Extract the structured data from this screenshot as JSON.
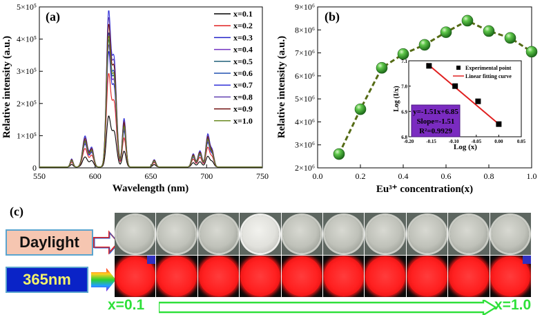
{
  "chart_data": [
    {
      "panel": "(a)",
      "type": "line",
      "xlabel": "Wavelength (nm)",
      "ylabel": "Relative intensity (a.u.)",
      "xlim": [
        550,
        750
      ],
      "ylim": [
        0,
        500000
      ],
      "x_ticks": [
        "550",
        "600",
        "650",
        "700",
        "750"
      ],
      "y_ticks": [
        "0",
        "1×10⁵",
        "2×10⁵",
        "3×10⁵",
        "4×10⁵",
        "5×10⁵"
      ],
      "peaks": [
        {
          "center": 579,
          "width": 1.3,
          "rel": 0.055
        },
        {
          "center": 591,
          "width": 2.2,
          "rel": 0.21
        },
        {
          "center": 597,
          "width": 1.8,
          "rel": 0.13
        },
        {
          "center": 612,
          "width": 1.9,
          "rel": 1.0
        },
        {
          "center": 617,
          "width": 2.2,
          "rel": 0.72
        },
        {
          "center": 626,
          "width": 1.6,
          "rel": 0.33
        },
        {
          "center": 653,
          "width": 1.5,
          "rel": 0.05
        },
        {
          "center": 688,
          "width": 1.6,
          "rel": 0.09
        },
        {
          "center": 694,
          "width": 1.8,
          "rel": 0.11
        },
        {
          "center": 701,
          "width": 1.7,
          "rel": 0.22
        },
        {
          "center": 705,
          "width": 1.6,
          "rel": 0.11
        }
      ],
      "series": [
        {
          "name": "x=0.1",
          "color": "#000000",
          "peak": 150000
        },
        {
          "name": "x=0.2",
          "color": "#e02020",
          "peak": 275000
        },
        {
          "name": "x=0.3",
          "color": "#2020c8",
          "peak": 340000
        },
        {
          "name": "x=0.4",
          "color": "#7030c0",
          "peak": 360000
        },
        {
          "name": "x=0.5",
          "color": "#20607a",
          "peak": 375000
        },
        {
          "name": "x=0.6",
          "color": "#2050b0",
          "peak": 395000
        },
        {
          "name": "x=0.7",
          "color": "#3030d8",
          "peak": 460000
        },
        {
          "name": "x=0.8",
          "color": "#6040b0",
          "peak": 440000
        },
        {
          "name": "x=0.9",
          "color": "#701010",
          "peak": 420000
        },
        {
          "name": "x=1.0",
          "color": "#6a8a20",
          "peak": 385000
        }
      ]
    },
    {
      "panel": "(b)",
      "type": "line",
      "xlabel": "Eu³⁺ concentration(x)",
      "ylabel": "Relative intensity (a.u.)",
      "xlim": [
        0.0,
        1.0
      ],
      "ylim": [
        2000000,
        9000000
      ],
      "x_ticks": [
        "0.0",
        "0.2",
        "0.4",
        "0.6",
        "0.8",
        "1.0"
      ],
      "y_ticks": [
        "2×10⁶",
        "3×10⁶",
        "4×10⁶",
        "5×10⁶",
        "6×10⁶",
        "7×10⁶",
        "8×10⁶",
        "9×10⁶"
      ],
      "line_color": "#556b15",
      "marker_color": "#3aa83a",
      "x": [
        0.1,
        0.2,
        0.3,
        0.4,
        0.5,
        0.6,
        0.7,
        0.8,
        0.9,
        1.0
      ],
      "values": [
        2600000,
        4550000,
        6350000,
        6950000,
        7350000,
        7900000,
        8400000,
        7950000,
        7650000,
        7050000
      ],
      "inset": {
        "type": "scatter",
        "xlabel": "Log (x)",
        "ylabel": "Log (I/x)",
        "xlim": [
          -0.2,
          0.05
        ],
        "ylim": [
          6.8,
          7.1
        ],
        "x_ticks": [
          "-0.20",
          "-0.15",
          "-0.10",
          "-0.05",
          "0.00",
          "0.05"
        ],
        "y_ticks": [
          "6.8",
          "6.9",
          "7.0",
          "7.1"
        ],
        "points_x": [
          -0.155,
          -0.097,
          -0.046,
          0.0
        ],
        "points_y": [
          7.08,
          7.0,
          6.94,
          6.85
        ],
        "fit_x": [
          -0.16,
          0.0
        ],
        "fit_y": [
          7.09,
          6.85
        ],
        "legend": [
          "Experimental point",
          "Linear fitting curve"
        ],
        "fit_color": "#e02020",
        "box_color": "#7a2bc0",
        "box_lines": [
          "y=-1.51x+6.85",
          "Slope=-1.51",
          "R²=0.9929"
        ]
      }
    }
  ],
  "photos": {
    "panel": "(c)",
    "daylight_label": "Daylight",
    "uv_label": "365nm",
    "range_start": "x=0.1",
    "range_end": "x=1.0",
    "count": 10
  }
}
